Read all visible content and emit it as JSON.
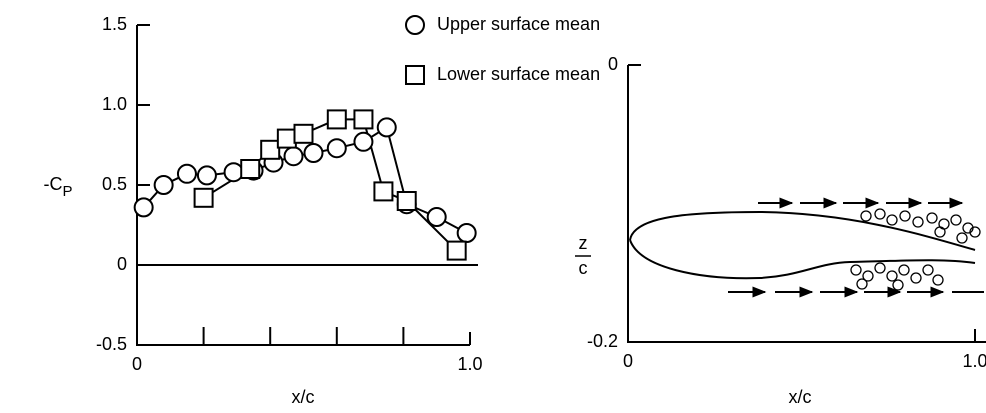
{
  "chart_data": [
    {
      "type": "scatter-line",
      "xlabel": "x/c",
      "ylabel": [
        "-C",
        "P"
      ],
      "xlim": [
        0,
        1
      ],
      "ylim": [
        -0.5,
        1.5
      ],
      "xticks": [
        0,
        {
          "value": 1,
          "label": "1.0"
        }
      ],
      "xminor_ticks": [
        0.2,
        0.4,
        0.6,
        0.8
      ],
      "yticks": [
        -0.5,
        0,
        0.5,
        {
          "value": 1,
          "label": "1.0"
        },
        1.5
      ],
      "baseline": 0,
      "series": [
        {
          "name": "Upper surface mean",
          "marker": "circle",
          "color": "#000000",
          "x": [
            0.02,
            0.08,
            0.15,
            0.21,
            0.29,
            0.35,
            0.41,
            0.47,
            0.53,
            0.6,
            0.68,
            0.75,
            0.81,
            0.9,
            0.99
          ],
          "values": [
            0.36,
            0.5,
            0.57,
            0.56,
            0.58,
            0.59,
            0.64,
            0.68,
            0.7,
            0.73,
            0.77,
            0.86,
            0.38,
            0.3,
            0.2
          ]
        },
        {
          "name": "Lower surface mean",
          "marker": "square",
          "color": "#000000",
          "x": [
            0.2,
            0.34,
            0.4,
            0.45,
            0.5,
            0.6,
            0.68,
            0.74,
            0.81,
            0.96
          ],
          "values": [
            0.42,
            0.6,
            0.72,
            0.79,
            0.82,
            0.91,
            0.91,
            0.46,
            0.4,
            0.09
          ]
        }
      ]
    },
    {
      "type": "schematic",
      "xlabel": "x/c",
      "ylabel": [
        "z",
        "c"
      ],
      "xlim": [
        0,
        1
      ],
      "ylim": [
        -0.2,
        0
      ],
      "xticks": [
        0,
        {
          "value": 1,
          "label": "1.0"
        }
      ],
      "yticks": [
        -0.2,
        0
      ]
    }
  ]
}
